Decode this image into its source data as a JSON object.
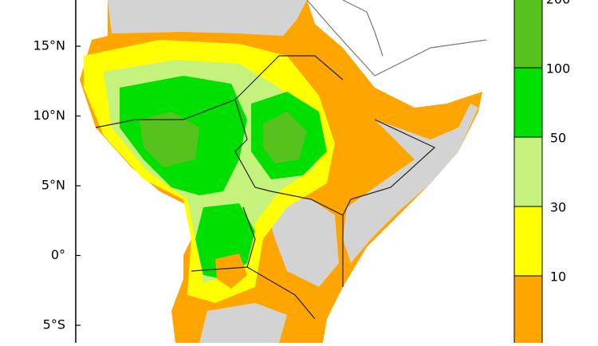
{
  "latitude_labels": [
    "15°N",
    "10°N",
    "5°N",
    "0°",
    "5°S"
  ],
  "colorbar": {
    "labels": [
      "200",
      "100",
      "50",
      "30",
      "10"
    ],
    "colors": [
      "#55c21e",
      "#00e000",
      "#c4f27c",
      "#ffff00",
      "#ffa500"
    ]
  }
}
